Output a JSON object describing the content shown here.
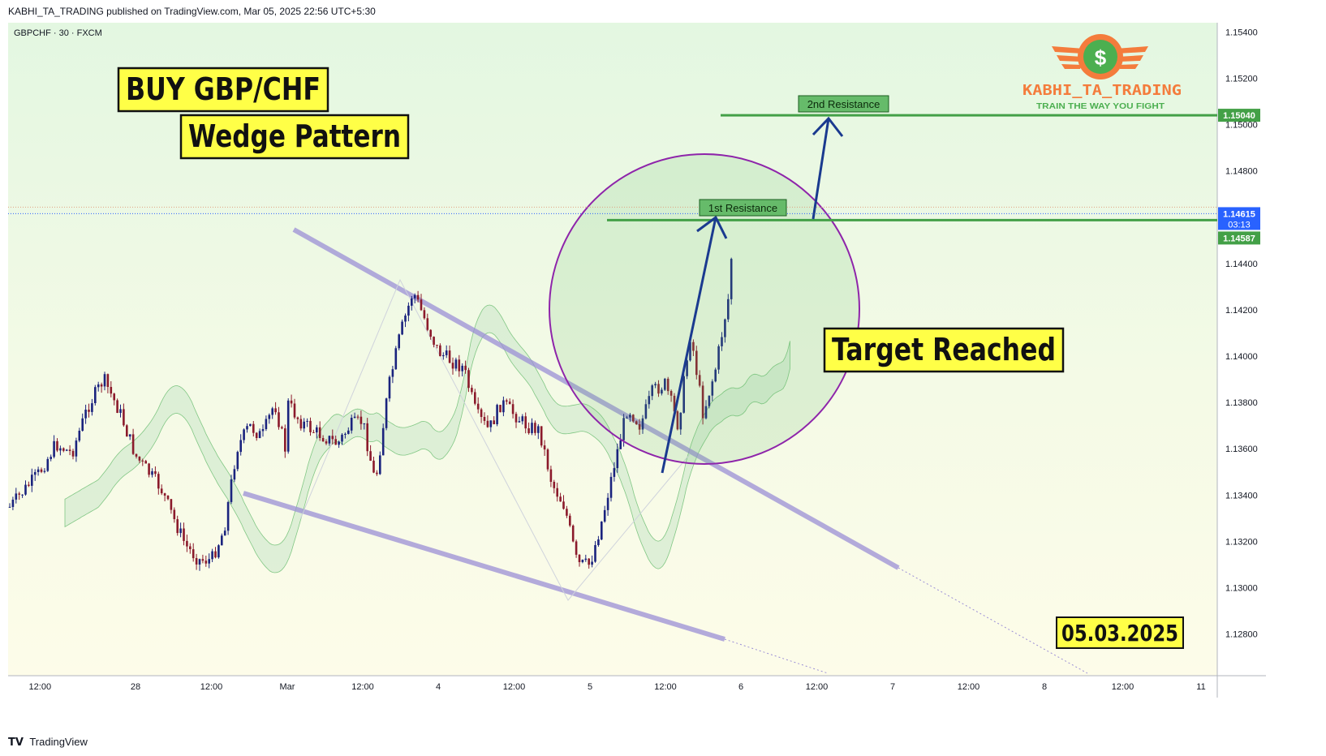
{
  "header": {
    "attribution": "KABHI_TA_TRADING published on TradingView.com, Mar 05, 2025 22:56 UTC+5:30"
  },
  "footer": {
    "brand": "TradingView",
    "logo_icon": "tradingview-logo-icon"
  },
  "logo": {
    "icon": "dollar-coin-wings-icon",
    "name": "KABHI_TA_TRADING",
    "tagline": "TRAIN THE WAY YOU FIGHT",
    "color": "#f47c3c",
    "tagline_color": "#4caf50"
  },
  "annotations": {
    "title": "BUY GBP/CHF",
    "pattern": "Wedge Pattern",
    "status": "Target Reached",
    "date": "05.03.2025",
    "resistance1": "1st Resistance",
    "resistance2": "2nd Resistance"
  },
  "chart_data": {
    "type": "candlestick",
    "symbol_label": "GBPCHF · 30 · FXCM",
    "xlim": [
      "2025-02-27 08:00",
      "2025-03-11 00:00"
    ],
    "ylim": [
      1.1264,
      1.1546
    ],
    "x_ticks": [
      {
        "t": "2025-02-27 12:00",
        "label": "12:00"
      },
      {
        "t": "2025-02-28 00:00",
        "label": "28"
      },
      {
        "t": "2025-02-28 12:00",
        "label": "12:00"
      },
      {
        "t": "2025-03-01 00:00",
        "label": "Mar"
      },
      {
        "t": "2025-03-03 12:00",
        "label": "12:00"
      },
      {
        "t": "2025-03-04 00:00",
        "label": "4"
      },
      {
        "t": "2025-03-04 12:00",
        "label": "12:00"
      },
      {
        "t": "2025-03-05 00:00",
        "label": "5"
      },
      {
        "t": "2025-03-05 12:00",
        "label": "12:00"
      },
      {
        "t": "2025-03-06 00:00",
        "label": "6"
      },
      {
        "t": "2025-03-06 12:00",
        "label": "12:00"
      },
      {
        "t": "2025-03-07 00:00",
        "label": "7"
      },
      {
        "t": "2025-03-07 12:00",
        "label": "12:00"
      },
      {
        "t": "2025-03-08 00:00",
        "label": "8"
      },
      {
        "t": "2025-03-10 12:00",
        "label": "12:00"
      },
      {
        "t": "2025-03-11 00:00",
        "label": "11"
      }
    ],
    "y_ticks": [
      "1.15400",
      "1.15200",
      "1.15000",
      "1.14800",
      "1.14400",
      "1.14200",
      "1.14000",
      "1.13800",
      "1.13600",
      "1.13400",
      "1.13200",
      "1.13000",
      "1.12800"
    ],
    "price_labels": [
      {
        "value": "1.15040",
        "kind": "resistance"
      },
      {
        "value": "1.14615",
        "kind": "last",
        "countdown": "03:13"
      },
      {
        "value": "1.14587",
        "kind": "resistance"
      }
    ],
    "close_path": [
      [
        "2025-02-27 08:00",
        1.1334
      ],
      [
        "2025-02-27 10:00",
        1.1342
      ],
      [
        "2025-02-27 12:00",
        1.135
      ],
      [
        "2025-02-27 14:00",
        1.1362
      ],
      [
        "2025-02-27 16:00",
        1.1358
      ],
      [
        "2025-02-27 18:00",
        1.1378
      ],
      [
        "2025-02-27 20:00",
        1.139
      ],
      [
        "2025-02-27 22:00",
        1.1376
      ],
      [
        "2025-02-28 00:00",
        1.1357
      ],
      [
        "2025-02-28 02:00",
        1.135
      ],
      [
        "2025-02-28 04:00",
        1.1343
      ],
      [
        "2025-02-28 06:00",
        1.133
      ],
      [
        "2025-02-28 08:00",
        1.1318
      ],
      [
        "2025-02-28 10:00",
        1.1312
      ],
      [
        "2025-02-28 12:00",
        1.1312
      ],
      [
        "2025-02-28 14:00",
        1.1325
      ],
      [
        "2025-02-28 16:00",
        1.136
      ],
      [
        "2025-02-28 18:00",
        1.137
      ],
      [
        "2025-02-28 20:00",
        1.1365
      ],
      [
        "2025-02-28 22:00",
        1.138
      ],
      [
        "2025-03-01 00:00",
        1.1356
      ],
      [
        "2025-03-01 02:00",
        1.1347
      ],
      [
        "2025-03-01 04:00",
        1.1362
      ],
      [
        "2025-03-01 06:00",
        1.134
      ],
      [
        "2025-03-03 00:00",
        1.138
      ],
      [
        "2025-03-03 02:00",
        1.1372
      ],
      [
        "2025-03-03 04:00",
        1.1368
      ],
      [
        "2025-03-03 06:00",
        1.1365
      ],
      [
        "2025-03-03 08:00",
        1.1362
      ],
      [
        "2025-03-03 10:00",
        1.137
      ],
      [
        "2025-03-03 12:00",
        1.1372
      ],
      [
        "2025-03-03 14:00",
        1.1345
      ],
      [
        "2025-03-03 16:00",
        1.1385
      ],
      [
        "2025-03-03 18:00",
        1.141
      ],
      [
        "2025-03-03 20:00",
        1.1428
      ],
      [
        "2025-03-03 22:00",
        1.1415
      ],
      [
        "2025-03-04 00:00",
        1.1402
      ],
      [
        "2025-03-04 02:00",
        1.1398
      ],
      [
        "2025-03-04 04:00",
        1.1395
      ],
      [
        "2025-03-04 06:00",
        1.1375
      ],
      [
        "2025-03-04 08:00",
        1.1368
      ],
      [
        "2025-03-04 10:00",
        1.138
      ],
      [
        "2025-03-04 12:00",
        1.1375
      ],
      [
        "2025-03-04 14:00",
        1.137
      ],
      [
        "2025-03-04 16:00",
        1.1368
      ],
      [
        "2025-03-04 18:00",
        1.1345
      ],
      [
        "2025-03-04 20:00",
        1.1335
      ],
      [
        "2025-03-04 22:00",
        1.131
      ],
      [
        "2025-03-05 00:00",
        1.131
      ],
      [
        "2025-03-05 02:00",
        1.133
      ],
      [
        "2025-03-05 04:00",
        1.1355
      ],
      [
        "2025-03-05 06:00",
        1.1378
      ],
      [
        "2025-03-05 08:00",
        1.137
      ],
      [
        "2025-03-05 10:00",
        1.1385
      ],
      [
        "2025-03-05 12:00",
        1.1388
      ],
      [
        "2025-03-05 14:00",
        1.137
      ],
      [
        "2025-03-05 16:00",
        1.141
      ],
      [
        "2025-03-05 18:00",
        1.1375
      ],
      [
        "2025-03-05 20:00",
        1.1395
      ],
      [
        "2025-03-05 22:00",
        1.1425
      ],
      [
        "2025-03-05 23:00",
        1.14615
      ]
    ]
  }
}
